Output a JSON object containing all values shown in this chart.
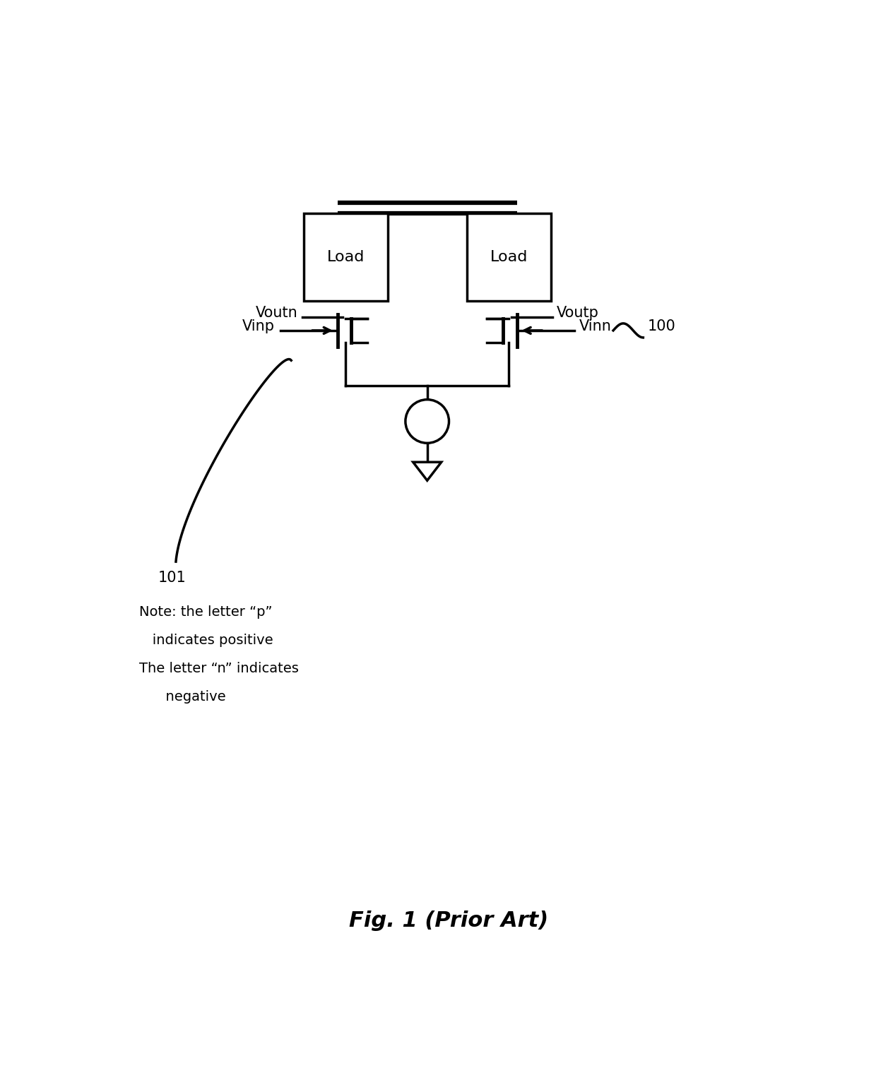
{
  "bg_color": "#ffffff",
  "line_color": "#000000",
  "line_width": 2.5,
  "fig_width": 12.4,
  "fig_height": 15.12,
  "title": "Fig. 1 (Prior Art)",
  "note_line1": "Note: the letter “p”",
  "note_line2": "   indicates positive",
  "note_line3": "The letter “n” indicates",
  "note_line4": "      negative",
  "label_voutn": "Voutn",
  "label_voutp": "Voutp",
  "label_vinp": "Vinp",
  "label_vinn": "Vinn",
  "label_100": "100",
  "label_101": "101",
  "label_load": "Load",
  "font_size_label": 15,
  "font_size_title": 22,
  "font_size_note": 14
}
